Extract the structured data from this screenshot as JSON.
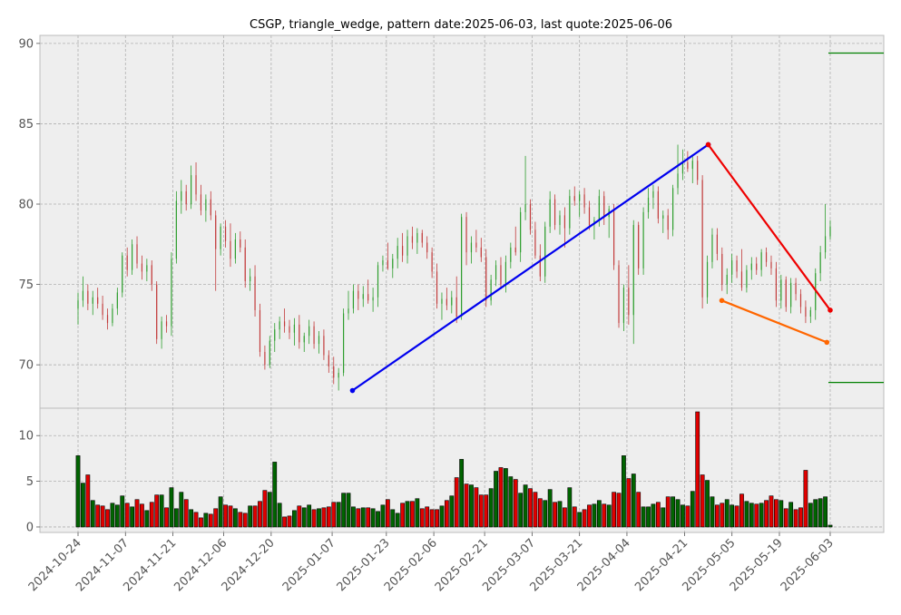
{
  "chart_data": {
    "type": "candlestick",
    "title": "CSGP, triangle_wedge, pattern date:2025-06-03, last quote:2025-06-06",
    "price_ylim": [
      67.3,
      90.5
    ],
    "price_yticks": [
      70,
      75,
      80,
      85,
      90
    ],
    "volume_ylim": [
      -0.6,
      13.0
    ],
    "volume_yticks": [
      0,
      5,
      10
    ],
    "x_range_days": [
      -4,
      160
    ],
    "date_ticks": [
      {
        "label": "2024-10-24",
        "day": 0
      },
      {
        "label": "2024-11-07",
        "day": 14
      },
      {
        "label": "2024-11-21",
        "day": 28
      },
      {
        "label": "2024-12-06",
        "day": 43
      },
      {
        "label": "2024-12-20",
        "day": 57
      },
      {
        "label": "2025-01-07",
        "day": 75
      },
      {
        "label": "2025-01-23",
        "day": 91
      },
      {
        "label": "2025-02-06",
        "day": 105
      },
      {
        "label": "2025-02-21",
        "day": 120
      },
      {
        "label": "2025-03-07",
        "day": 134
      },
      {
        "label": "2025-03-21",
        "day": 148
      },
      {
        "label": "2025-04-04",
        "day": 162
      },
      {
        "label": "2025-04-21",
        "day": 179
      },
      {
        "label": "2025-05-05",
        "day": 193
      },
      {
        "label": "2025-05-19",
        "day": 207
      },
      {
        "label": "2025-06-03",
        "day": 222
      }
    ],
    "trend_lines": [
      {
        "color": "#0000ee",
        "points": [
          [
            "2025-01-13",
            68.4
          ],
          [
            "2025-04-28",
            83.7
          ]
        ]
      },
      {
        "color": "#ee0000",
        "points": [
          [
            "2025-04-28",
            83.7
          ],
          [
            "2025-06-03",
            73.4
          ]
        ]
      },
      {
        "color": "#ff6600",
        "points": [
          [
            "2025-05-02",
            74.0
          ],
          [
            "2025-06-02",
            71.4
          ]
        ]
      }
    ],
    "level_lines": [
      {
        "color": "#008000",
        "value": 89.4
      },
      {
        "color": "#008000",
        "value": 68.9
      }
    ],
    "candles": [
      [
        73.5,
        74.5,
        72.5,
        74.0,
        7.8
      ],
      [
        74.0,
        75.5,
        73.6,
        74.6,
        4.8
      ],
      [
        74.6,
        75.0,
        73.4,
        73.8,
        5.7
      ],
      [
        73.8,
        74.6,
        73.1,
        74.2,
        2.9
      ],
      [
        74.2,
        74.8,
        73.5,
        73.8,
        2.4
      ],
      [
        73.8,
        74.3,
        72.8,
        73.1,
        2.3
      ],
      [
        73.1,
        73.5,
        72.2,
        72.6,
        1.9
      ],
      [
        72.6,
        73.8,
        72.4,
        73.5,
        2.6
      ],
      [
        73.5,
        74.8,
        73.1,
        74.5,
        2.4
      ],
      [
        74.5,
        77.0,
        74.2,
        76.8,
        3.4
      ],
      [
        76.8,
        77.3,
        75.5,
        75.9,
        2.6
      ],
      [
        75.9,
        77.8,
        75.6,
        77.5,
        2.2
      ],
      [
        77.5,
        78.0,
        76.0,
        76.3,
        3.0
      ],
      [
        76.3,
        76.8,
        75.3,
        75.8,
        2.5
      ],
      [
        75.8,
        76.6,
        75.2,
        76.2,
        1.8
      ],
      [
        76.2,
        76.5,
        74.6,
        75.0,
        2.7
      ],
      [
        75.0,
        75.2,
        71.3,
        71.6,
        3.5
      ],
      [
        71.6,
        73.0,
        71.0,
        72.7,
        3.5
      ],
      [
        72.7,
        73.1,
        72.0,
        72.4,
        2.1
      ],
      [
        72.4,
        77.0,
        71.8,
        76.6,
        4.3
      ],
      [
        76.6,
        80.8,
        76.3,
        80.2,
        2.0
      ],
      [
        80.2,
        81.5,
        79.4,
        80.8,
        3.8
      ],
      [
        80.8,
        81.2,
        79.6,
        80.0,
        3.0
      ],
      [
        80.0,
        82.4,
        79.7,
        81.8,
        1.9
      ],
      [
        81.8,
        82.6,
        80.2,
        80.6,
        1.6
      ],
      [
        80.6,
        81.2,
        79.3,
        79.6,
        1.0
      ],
      [
        79.6,
        80.6,
        78.9,
        80.3,
        1.5
      ],
      [
        80.3,
        80.8,
        79.0,
        79.3,
        1.4
      ],
      [
        79.3,
        79.6,
        74.6,
        77.2,
        2.0
      ],
      [
        77.2,
        78.8,
        76.8,
        78.6,
        3.3
      ],
      [
        78.6,
        79.0,
        77.3,
        77.7,
        2.4
      ],
      [
        77.7,
        78.8,
        76.1,
        76.6,
        2.3
      ],
      [
        76.6,
        78.2,
        76.3,
        77.8,
        2.0
      ],
      [
        77.8,
        78.3,
        77.0,
        77.3,
        1.6
      ],
      [
        77.3,
        77.8,
        74.8,
        75.2,
        1.5
      ],
      [
        75.2,
        76.0,
        74.6,
        75.5,
        2.3
      ],
      [
        75.5,
        76.2,
        73.0,
        73.4,
        2.3
      ],
      [
        73.4,
        73.8,
        70.5,
        70.8,
        2.8
      ],
      [
        70.8,
        71.2,
        69.7,
        70.0,
        4.0
      ],
      [
        70.0,
        71.8,
        69.8,
        71.5,
        3.8
      ],
      [
        71.5,
        72.6,
        70.8,
        72.2,
        7.1
      ],
      [
        72.2,
        73.0,
        71.6,
        72.7,
        2.6
      ],
      [
        72.7,
        73.5,
        72.0,
        72.4,
        1.1
      ],
      [
        72.4,
        72.8,
        71.6,
        72.0,
        1.2
      ],
      [
        72.0,
        72.9,
        71.2,
        72.5,
        1.8
      ],
      [
        72.5,
        73.1,
        71.0,
        71.4,
        2.3
      ],
      [
        71.4,
        72.0,
        70.8,
        71.8,
        2.1
      ],
      [
        71.8,
        72.8,
        71.3,
        72.4,
        2.4
      ],
      [
        72.4,
        72.7,
        71.0,
        71.3,
        1.9
      ],
      [
        71.3,
        72.1,
        70.7,
        71.8,
        2.0
      ],
      [
        71.8,
        72.2,
        70.3,
        70.6,
        2.1
      ],
      [
        70.6,
        70.9,
        69.5,
        69.9,
        2.2
      ],
      [
        69.9,
        70.5,
        68.8,
        69.2,
        2.7
      ],
      [
        69.2,
        69.8,
        68.4,
        69.5,
        2.7
      ],
      [
        69.5,
        73.5,
        69.3,
        73.2,
        3.7
      ],
      [
        73.2,
        74.6,
        72.8,
        73.5,
        3.7
      ],
      [
        73.5,
        75.0,
        73.2,
        74.6,
        2.2
      ],
      [
        74.6,
        75.0,
        73.4,
        74.1,
        2.0
      ],
      [
        74.1,
        74.9,
        73.6,
        74.4,
        2.1
      ],
      [
        74.4,
        75.3,
        73.8,
        74.0,
        2.1
      ],
      [
        74.0,
        74.8,
        73.3,
        74.2,
        2.0
      ],
      [
        74.2,
        76.4,
        73.6,
        76.2,
        1.7
      ],
      [
        76.2,
        76.8,
        75.8,
        76.5,
        2.4
      ],
      [
        76.5,
        77.6,
        75.9,
        76.0,
        3.0
      ],
      [
        76.0,
        76.9,
        75.4,
        76.6,
        1.9
      ],
      [
        76.6,
        77.9,
        76.0,
        77.4,
        1.5
      ],
      [
        77.4,
        78.2,
        76.4,
        76.8,
        2.6
      ],
      [
        76.8,
        78.4,
        76.3,
        78.0,
        2.8
      ],
      [
        78.0,
        78.6,
        77.2,
        77.6,
        2.8
      ],
      [
        77.6,
        78.5,
        76.9,
        78.2,
        3.1
      ],
      [
        78.2,
        78.4,
        77.3,
        77.6,
        2.0
      ],
      [
        77.6,
        78.0,
        76.6,
        77.0,
        2.2
      ],
      [
        77.0,
        77.3,
        75.4,
        75.8,
        1.9
      ],
      [
        75.8,
        76.3,
        73.5,
        73.8,
        1.9
      ],
      [
        73.8,
        74.5,
        72.8,
        74.1,
        2.3
      ],
      [
        74.1,
        74.8,
        73.4,
        73.7,
        2.9
      ],
      [
        73.7,
        74.6,
        73.2,
        74.2,
        3.4
      ],
      [
        74.2,
        75.5,
        72.6,
        73.0,
        5.4
      ],
      [
        73.0,
        79.4,
        72.8,
        79.2,
        7.4
      ],
      [
        79.2,
        79.5,
        76.2,
        77.0,
        4.7
      ],
      [
        77.0,
        78.0,
        76.3,
        77.6,
        4.6
      ],
      [
        77.6,
        78.4,
        77.0,
        77.3,
        4.3
      ],
      [
        77.3,
        77.9,
        76.4,
        76.7,
        3.5
      ],
      [
        76.7,
        77.2,
        73.6,
        74.0,
        3.5
      ],
      [
        74.0,
        75.6,
        73.7,
        75.3,
        4.2
      ],
      [
        75.3,
        76.5,
        74.9,
        76.2,
        6.1
      ],
      [
        76.2,
        76.7,
        74.7,
        75.0,
        6.5
      ],
      [
        75.0,
        76.8,
        74.5,
        76.4,
        6.4
      ],
      [
        76.4,
        77.6,
        76.0,
        77.3,
        5.5
      ],
      [
        77.3,
        78.6,
        76.8,
        77.0,
        5.2
      ],
      [
        77.0,
        79.8,
        76.4,
        79.5,
        3.7
      ],
      [
        79.5,
        83.0,
        79.0,
        80.0,
        4.6
      ],
      [
        80.0,
        80.3,
        78.1,
        78.4,
        4.2
      ],
      [
        78.4,
        78.9,
        76.6,
        76.8,
        3.8
      ],
      [
        76.8,
        77.5,
        75.2,
        75.5,
        3.1
      ],
      [
        75.5,
        78.9,
        75.1,
        78.6,
        2.9
      ],
      [
        78.6,
        80.8,
        78.2,
        80.3,
        4.1
      ],
      [
        80.3,
        80.6,
        78.4,
        78.7,
        2.7
      ],
      [
        78.7,
        79.6,
        78.1,
        79.3,
        2.8
      ],
      [
        79.3,
        79.8,
        77.3,
        78.5,
        2.1
      ],
      [
        78.5,
        80.9,
        78.1,
        80.5,
        4.3
      ],
      [
        80.5,
        81.1,
        79.9,
        80.2,
        2.2
      ],
      [
        80.2,
        80.8,
        79.2,
        80.6,
        1.6
      ],
      [
        80.6,
        81.0,
        79.4,
        79.8,
        1.9
      ],
      [
        79.8,
        80.2,
        78.4,
        78.7,
        2.4
      ],
      [
        78.7,
        79.2,
        77.8,
        79.0,
        2.5
      ],
      [
        79.0,
        80.9,
        78.6,
        80.5,
        2.9
      ],
      [
        80.5,
        80.8,
        78.7,
        79.2,
        2.5
      ],
      [
        79.2,
        79.9,
        77.9,
        79.7,
        2.4
      ],
      [
        79.7,
        80.0,
        75.9,
        76.2,
        3.8
      ],
      [
        76.2,
        76.5,
        72.3,
        72.6,
        3.7
      ],
      [
        72.6,
        75.0,
        72.1,
        74.8,
        7.8
      ],
      [
        74.8,
        76.2,
        72.5,
        73.1,
        5.3
      ],
      [
        73.1,
        79.0,
        71.3,
        78.7,
        5.8
      ],
      [
        78.7,
        78.9,
        75.6,
        76.0,
        3.8
      ],
      [
        76.0,
        79.8,
        75.6,
        79.5,
        2.2
      ],
      [
        79.5,
        81.0,
        79.1,
        80.4,
        2.2
      ],
      [
        80.4,
        81.2,
        79.7,
        80.8,
        2.5
      ],
      [
        80.8,
        81.1,
        78.8,
        79.1,
        2.7
      ],
      [
        79.1,
        79.6,
        78.2,
        79.3,
        2.1
      ],
      [
        79.3,
        79.7,
        77.8,
        78.4,
        3.3
      ],
      [
        78.4,
        81.2,
        78.0,
        81.0,
        3.3
      ],
      [
        81.0,
        83.7,
        80.6,
        81.9,
        3.0
      ],
      [
        81.9,
        83.4,
        81.5,
        82.6,
        2.4
      ],
      [
        82.6,
        83.3,
        82.0,
        82.2,
        2.3
      ],
      [
        82.2,
        83.1,
        81.3,
        82.7,
        3.9
      ],
      [
        82.7,
        83.0,
        81.2,
        81.5,
        12.6
      ],
      [
        81.5,
        81.8,
        73.5,
        74.2,
        5.7
      ],
      [
        74.2,
        76.8,
        73.8,
        76.4,
        5.1
      ],
      [
        76.4,
        78.5,
        76.0,
        78.1,
        3.3
      ],
      [
        78.1,
        78.5,
        76.5,
        76.9,
        2.4
      ],
      [
        76.9,
        77.3,
        74.6,
        75.0,
        2.6
      ],
      [
        75.0,
        76.0,
        74.4,
        75.6,
        3.0
      ],
      [
        75.6,
        76.9,
        75.1,
        76.5,
        2.4
      ],
      [
        76.5,
        76.8,
        75.4,
        75.8,
        2.3
      ],
      [
        75.8,
        77.2,
        74.6,
        74.8,
        3.6
      ],
      [
        74.8,
        76.2,
        74.5,
        75.9,
        2.8
      ],
      [
        75.9,
        76.7,
        75.3,
        76.3,
        2.6
      ],
      [
        76.3,
        76.7,
        75.6,
        75.9,
        2.5
      ],
      [
        75.9,
        77.2,
        75.5,
        77.0,
        2.6
      ],
      [
        77.0,
        77.3,
        76.1,
        76.4,
        2.9
      ],
      [
        76.4,
        76.8,
        75.6,
        76.0,
        3.4
      ],
      [
        76.0,
        76.4,
        73.6,
        74.0,
        3.0
      ],
      [
        74.0,
        75.6,
        73.5,
        75.3,
        2.9
      ],
      [
        75.3,
        75.5,
        73.3,
        73.6,
        2.0
      ],
      [
        73.6,
        75.4,
        73.2,
        75.1,
        2.7
      ],
      [
        75.1,
        75.4,
        74.0,
        74.4,
        1.9
      ],
      [
        74.4,
        74.7,
        73.2,
        73.6,
        2.1
      ],
      [
        73.6,
        74.0,
        72.6,
        73.0,
        6.2
      ],
      [
        73.0,
        73.6,
        72.6,
        73.4,
        2.6
      ],
      [
        73.4,
        76.0,
        72.8,
        75.7,
        3.0
      ],
      [
        75.7,
        77.4,
        75.2,
        77.0,
        3.1
      ],
      [
        77.0,
        80.0,
        76.6,
        78.0,
        3.3
      ],
      [
        78.0,
        79.0,
        77.8,
        78.6,
        0.2
      ]
    ]
  }
}
